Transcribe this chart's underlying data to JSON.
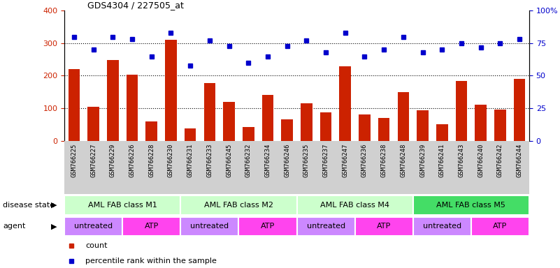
{
  "title": "GDS4304 / 227505_at",
  "samples": [
    "GSM766225",
    "GSM766227",
    "GSM766229",
    "GSM766226",
    "GSM766228",
    "GSM766230",
    "GSM766231",
    "GSM766233",
    "GSM766245",
    "GSM766232",
    "GSM766234",
    "GSM766246",
    "GSM766235",
    "GSM766237",
    "GSM766247",
    "GSM766236",
    "GSM766238",
    "GSM766248",
    "GSM766239",
    "GSM766241",
    "GSM766243",
    "GSM766240",
    "GSM766242",
    "GSM766244"
  ],
  "counts": [
    220,
    105,
    248,
    203,
    60,
    310,
    38,
    178,
    120,
    43,
    140,
    65,
    115,
    87,
    228,
    80,
    70,
    150,
    93,
    50,
    183,
    110,
    95,
    190
  ],
  "percentiles": [
    80,
    70,
    80,
    78,
    65,
    83,
    58,
    77,
    73,
    60,
    65,
    73,
    77,
    68,
    83,
    65,
    70,
    80,
    68,
    70,
    75,
    72,
    75,
    78
  ],
  "bar_color": "#cc2200",
  "dot_color": "#0000cc",
  "ylim_left": [
    0,
    400
  ],
  "ylim_right": [
    0,
    100
  ],
  "yticks_left": [
    0,
    100,
    200,
    300,
    400
  ],
  "yticks_right": [
    0,
    25,
    50,
    75,
    100
  ],
  "xtick_bg": "#d0d0d0",
  "disease_state_groups": [
    {
      "label": "AML FAB class M1",
      "start": 0,
      "end": 6,
      "color": "#ccffcc"
    },
    {
      "label": "AML FAB class M2",
      "start": 6,
      "end": 12,
      "color": "#ccffcc"
    },
    {
      "label": "AML FAB class M4",
      "start": 12,
      "end": 18,
      "color": "#ccffcc"
    },
    {
      "label": "AML FAB class M5",
      "start": 18,
      "end": 24,
      "color": "#44dd66"
    }
  ],
  "agent_groups": [
    {
      "label": "untreated",
      "start": 0,
      "end": 3,
      "color": "#cc88ff"
    },
    {
      "label": "ATP",
      "start": 3,
      "end": 6,
      "color": "#ff44ee"
    },
    {
      "label": "untreated",
      "start": 6,
      "end": 9,
      "color": "#cc88ff"
    },
    {
      "label": "ATP",
      "start": 9,
      "end": 12,
      "color": "#ff44ee"
    },
    {
      "label": "untreated",
      "start": 12,
      "end": 15,
      "color": "#cc88ff"
    },
    {
      "label": "ATP",
      "start": 15,
      "end": 18,
      "color": "#ff44ee"
    },
    {
      "label": "untreated",
      "start": 18,
      "end": 21,
      "color": "#cc88ff"
    },
    {
      "label": "ATP",
      "start": 21,
      "end": 24,
      "color": "#ff44ee"
    }
  ],
  "legend_count_color": "#cc2200",
  "legend_pct_color": "#0000cc",
  "disease_label": "disease state",
  "agent_label": "agent"
}
